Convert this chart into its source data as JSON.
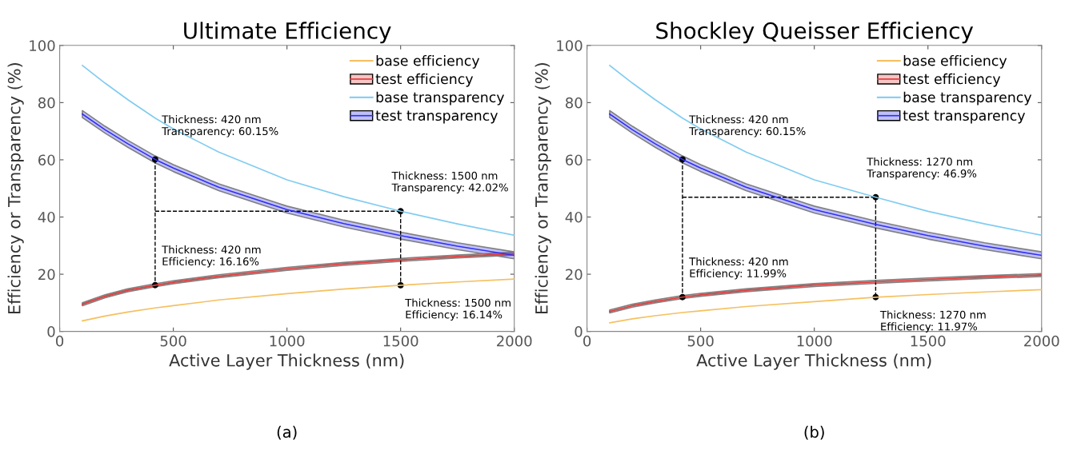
{
  "chart_data": [
    {
      "type": "line",
      "title": "Ultimate Efficiency",
      "xlabel": "Active Layer Thickness (nm)",
      "ylabel": "Efficiency or Transparency (%)",
      "xlim": [
        0,
        2000
      ],
      "ylim": [
        0,
        100
      ],
      "xticks": [
        0,
        500,
        1000,
        1500,
        2000
      ],
      "yticks": [
        0,
        20,
        40,
        60,
        80,
        100
      ],
      "grid": false,
      "legend": "top right",
      "marker": "none",
      "line_style": "solid",
      "series": [
        {
          "name": "base efficiency",
          "color": "#f5c060",
          "x": [
            100,
            200,
            300,
            420,
            500,
            700,
            1000,
            1250,
            1500,
            1750,
            2000
          ],
          "values": [
            3.7,
            5.4,
            6.8,
            8.2,
            9.0,
            11.0,
            13.2,
            14.8,
            16.14,
            17.3,
            18.3
          ]
        },
        {
          "name": "test efficiency",
          "color": "#e03c3c",
          "x": [
            100,
            200,
            300,
            420,
            500,
            700,
            1000,
            1250,
            1500,
            1750,
            2000
          ],
          "values": [
            9.5,
            12.3,
            14.4,
            16.16,
            17.2,
            19.3,
            21.9,
            23.6,
            25.0,
            26.2,
            27.2
          ],
          "lower": [
            9.0,
            11.8,
            13.9,
            15.66,
            16.7,
            18.8,
            21.4,
            23.1,
            24.5,
            25.7,
            26.7
          ],
          "upper": [
            10.0,
            12.8,
            14.9,
            16.66,
            17.7,
            19.8,
            22.4,
            24.1,
            25.5,
            26.7,
            27.7
          ]
        },
        {
          "name": "base transparency",
          "color": "#80ccf0",
          "x": [
            100,
            200,
            300,
            420,
            500,
            700,
            1000,
            1250,
            1500,
            1750,
            2000
          ],
          "values": [
            93.0,
            86.8,
            81.0,
            74.6,
            70.8,
            62.7,
            53.0,
            47.1,
            42.02,
            37.6,
            33.6
          ]
        },
        {
          "name": "test transparency",
          "color": "#3030f0",
          "x": [
            100,
            200,
            300,
            420,
            500,
            700,
            1000,
            1250,
            1500,
            1750,
            2000
          ],
          "values": [
            76.0,
            70.5,
            65.6,
            60.15,
            57.1,
            50.4,
            42.6,
            37.7,
            33.5,
            29.8,
            26.6
          ],
          "lower": [
            74.8,
            69.3,
            64.4,
            58.95,
            55.9,
            49.2,
            41.4,
            36.5,
            32.3,
            28.6,
            25.4
          ],
          "upper": [
            77.2,
            71.7,
            66.8,
            61.35,
            58.3,
            51.6,
            43.8,
            38.9,
            34.7,
            31.0,
            27.8
          ]
        },
        {
          "type": "line",
          "color": "#000000",
          "line_style": "dashed",
          "x": [
            420,
            420
          ],
          "values": [
            60.15,
            16.16
          ]
        },
        {
          "type": "line",
          "color": "#000000",
          "line_style": "dashed",
          "x": [
            420,
            1500,
            1500
          ],
          "values": [
            42.02,
            42.02,
            16.14
          ]
        },
        {
          "type": "scatter",
          "color": "#000000",
          "marker": "circle",
          "x": [
            420,
            420,
            1500,
            1500
          ],
          "values": [
            60.15,
            16.16,
            42.02,
            16.14
          ]
        }
      ],
      "annotations": [
        {
          "text": "Thickness: 420 nm\nTransparency: 60.15%",
          "x": 420,
          "y": 60.15
        },
        {
          "text": "Thickness: 420 nm\nEfficiency: 16.16%",
          "x": 420,
          "y": 16.16
        },
        {
          "text": "Thickness: 1500 nm\nTransparency: 42.02%",
          "x": 1500,
          "y": 42.02
        },
        {
          "text": "Thickness: 1500 nm\nEfficiency: 16.14%",
          "x": 1500,
          "y": 16.14
        },
        "(a)"
      ]
    },
    {
      "type": "line",
      "title": "Shockley Queisser Efficiency",
      "xlabel": "Active Layer Thickness (nm)",
      "ylabel": "Efficiency or Transparency (%)",
      "xlim": [
        0,
        2000
      ],
      "ylim": [
        0,
        100
      ],
      "xticks": [
        0,
        500,
        1000,
        1500,
        2000
      ],
      "yticks": [
        0,
        20,
        40,
        60,
        80,
        100
      ],
      "grid": false,
      "legend": "top right",
      "marker": "none",
      "line_style": "solid",
      "series": [
        {
          "name": "base efficiency",
          "color": "#f5c060",
          "x": [
            100,
            200,
            300,
            420,
            500,
            700,
            1000,
            1270,
            1500,
            1750,
            2000
          ],
          "values": [
            3.0,
            4.4,
            5.5,
            6.6,
            7.2,
            8.7,
            10.4,
            11.97,
            12.9,
            13.8,
            14.6
          ]
        },
        {
          "name": "test efficiency",
          "color": "#e03c3c",
          "x": [
            100,
            200,
            300,
            420,
            500,
            700,
            1000,
            1270,
            1500,
            1750,
            2000
          ],
          "values": [
            7.0,
            9.0,
            10.5,
            11.99,
            12.8,
            14.4,
            16.2,
            17.3,
            18.2,
            19.0,
            19.7
          ],
          "lower": [
            6.5,
            8.5,
            10.0,
            11.49,
            12.3,
            13.9,
            15.7,
            16.8,
            17.7,
            18.5,
            19.2
          ],
          "upper": [
            7.5,
            9.5,
            11.0,
            12.49,
            13.3,
            14.9,
            16.7,
            17.8,
            18.7,
            19.5,
            20.2
          ]
        },
        {
          "name": "base transparency",
          "color": "#80ccf0",
          "x": [
            100,
            200,
            300,
            420,
            500,
            700,
            1000,
            1270,
            1500,
            1750,
            2000
          ],
          "values": [
            93.0,
            86.8,
            81.0,
            74.6,
            70.8,
            62.7,
            53.0,
            46.9,
            42.0,
            37.6,
            33.6
          ]
        },
        {
          "name": "test transparency",
          "color": "#3030f0",
          "x": [
            100,
            200,
            300,
            420,
            500,
            700,
            1000,
            1270,
            1500,
            1750,
            2000
          ],
          "values": [
            76.0,
            70.5,
            65.6,
            60.15,
            57.1,
            50.4,
            42.6,
            37.4,
            33.5,
            29.8,
            26.6
          ],
          "lower": [
            74.8,
            69.3,
            64.4,
            58.95,
            55.9,
            49.2,
            41.4,
            36.2,
            32.3,
            28.6,
            25.4
          ],
          "upper": [
            77.2,
            71.7,
            66.8,
            61.35,
            58.3,
            51.6,
            43.8,
            38.6,
            34.7,
            31.0,
            27.8
          ]
        },
        {
          "type": "line",
          "color": "#000000",
          "line_style": "dashed",
          "x": [
            420,
            420
          ],
          "values": [
            60.15,
            11.99
          ]
        },
        {
          "type": "line",
          "color": "#000000",
          "line_style": "dashed",
          "x": [
            420,
            1270,
            1270
          ],
          "values": [
            46.9,
            46.9,
            11.97
          ]
        },
        {
          "type": "scatter",
          "color": "#000000",
          "marker": "circle",
          "x": [
            420,
            420,
            1270,
            1270
          ],
          "values": [
            60.15,
            11.99,
            46.9,
            11.97
          ]
        }
      ],
      "annotations": [
        {
          "text": "Thickness: 420 nm\nTransparency: 60.15%",
          "x": 420,
          "y": 60.15
        },
        {
          "text": "Thickness: 420 nm\nEfficiency: 11.99%",
          "x": 420,
          "y": 11.99
        },
        {
          "text": "Thickness: 1270 nm\nTransparency: 46.9%",
          "x": 1270,
          "y": 46.9
        },
        {
          "text": "Thickness: 1270 nm\nEfficiency: 11.97%",
          "x": 1270,
          "y": 11.97
        },
        "(b)"
      ]
    }
  ]
}
